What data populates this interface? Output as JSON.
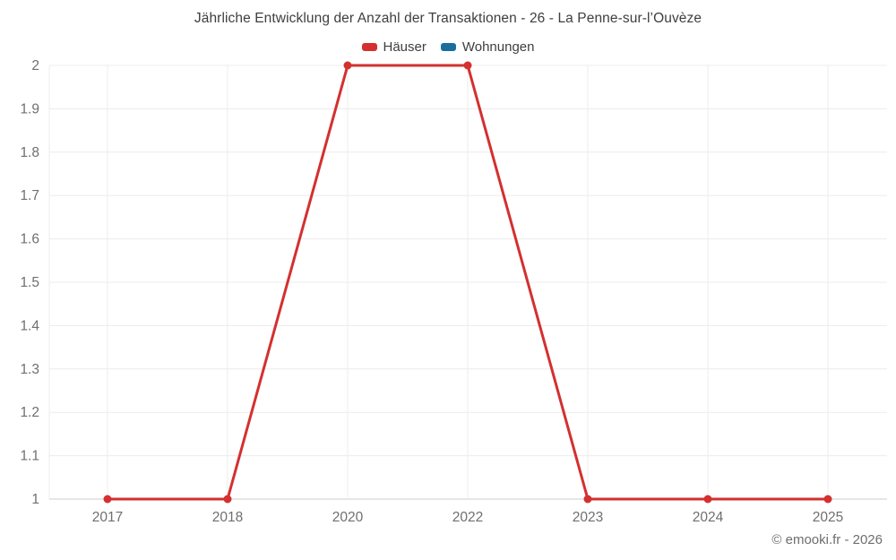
{
  "title": "Jährliche Entwicklung der Anzahl der Transaktionen - 26 - La Penne-sur-l’Ouvèze",
  "footer": "© emooki.fr - 2026",
  "chart_data": {
    "type": "line",
    "categories": [
      "2017",
      "2018",
      "2020",
      "2022",
      "2023",
      "2024",
      "2025"
    ],
    "series": [
      {
        "name": "Häuser",
        "color": "#d3302f",
        "values": [
          1,
          1,
          2,
          2,
          1,
          1,
          1
        ]
      },
      {
        "name": "Wohnungen",
        "color": "#1b6d9e",
        "values": []
      }
    ],
    "legend": [
      {
        "label": "Häuser",
        "color": "#d3302f"
      },
      {
        "label": "Wohnungen",
        "color": "#1b6d9e"
      }
    ],
    "title": "Jährliche Entwicklung der Anzahl der Transaktionen - 26 - La Penne-sur-l’Ouvèze",
    "xlabel": "",
    "ylabel": "",
    "ylim": [
      1,
      2
    ],
    "ytick_step": 0.1,
    "grid": true,
    "legend_position": "top"
  }
}
